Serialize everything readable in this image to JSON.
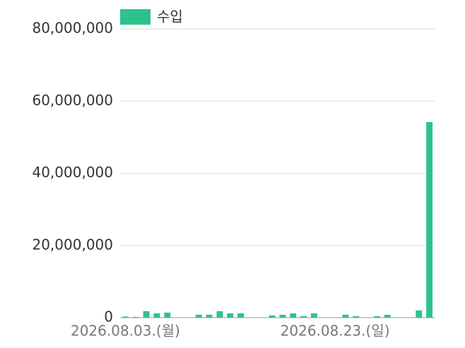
{
  "chart_data": {
    "type": "bar",
    "legend": "수입",
    "color": "#2ec28b",
    "categories": [
      "2026.08.03.(월)",
      null,
      null,
      null,
      null,
      null,
      null,
      null,
      null,
      null,
      null,
      null,
      null,
      null,
      null,
      null,
      null,
      null,
      null,
      null,
      "2026.08.23.(일)",
      null,
      null,
      null,
      null,
      null,
      null,
      null,
      null,
      null
    ],
    "values": [
      300000,
      200000,
      1800000,
      1200000,
      1400000,
      0,
      0,
      800000,
      800000,
      1800000,
      1200000,
      1200000,
      0,
      0,
      600000,
      800000,
      1200000,
      400000,
      1200000,
      0,
      0,
      800000,
      400000,
      0,
      400000,
      800000,
      0,
      0,
      2000000,
      54200000
    ],
    "ylim": [
      0,
      80000000
    ],
    "yticks": [
      0,
      {
        "value": 20000000,
        "label": "20,000,000"
      },
      {
        "value": 40000000,
        "label": "40,000,000"
      },
      {
        "value": 60000000,
        "label": "60,000,000"
      },
      {
        "value": 80000000,
        "label": "80,000,000"
      }
    ],
    "grid": true
  }
}
